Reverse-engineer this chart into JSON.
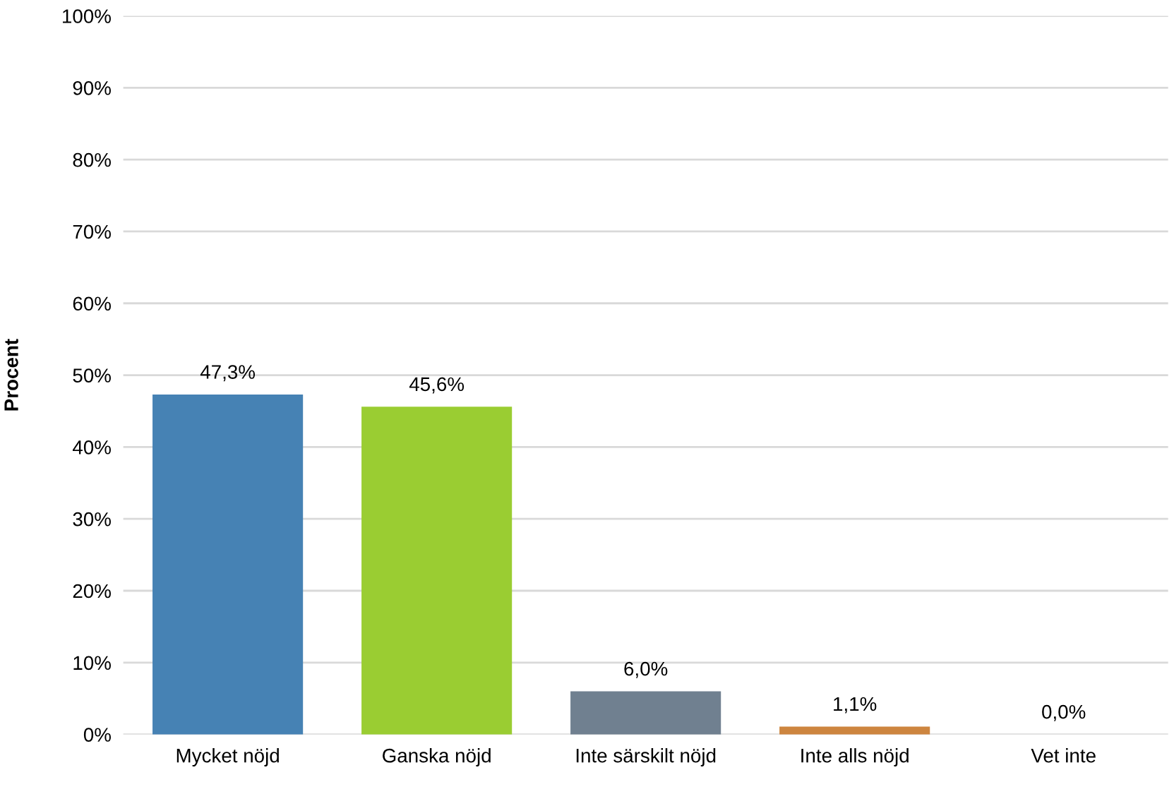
{
  "chart_data": {
    "type": "bar",
    "ylabel": "Procent",
    "categories": [
      "Mycket nöjd",
      "Ganska nöjd",
      "Inte särskilt nöjd",
      "Inte alls nöjd",
      "Vet inte"
    ],
    "values": [
      47.3,
      45.6,
      6.0,
      1.1,
      0.0
    ],
    "colors": [
      "#4682b4",
      "#9acd32",
      "#708090",
      "#cd853f",
      "#b0b0b0"
    ],
    "value_labels": [
      "47,3%",
      "45,6%",
      "6,0%",
      "1,1%",
      "0,0%"
    ],
    "ylim": [
      0,
      100
    ],
    "yticks": [
      {
        "value": 0,
        "label": "0%"
      },
      {
        "value": 10,
        "label": "10%"
      },
      {
        "value": 20,
        "label": "20%"
      },
      {
        "value": 30,
        "label": "30%"
      },
      {
        "value": 40,
        "label": "40%"
      },
      {
        "value": 50,
        "label": "50%"
      },
      {
        "value": 60,
        "label": "60%"
      },
      {
        "value": 70,
        "label": "70%"
      },
      {
        "value": 80,
        "label": "80%"
      },
      {
        "value": 90,
        "label": "90%"
      },
      {
        "value": 100,
        "label": "100%"
      }
    ],
    "grid": "y",
    "legend": false
  }
}
